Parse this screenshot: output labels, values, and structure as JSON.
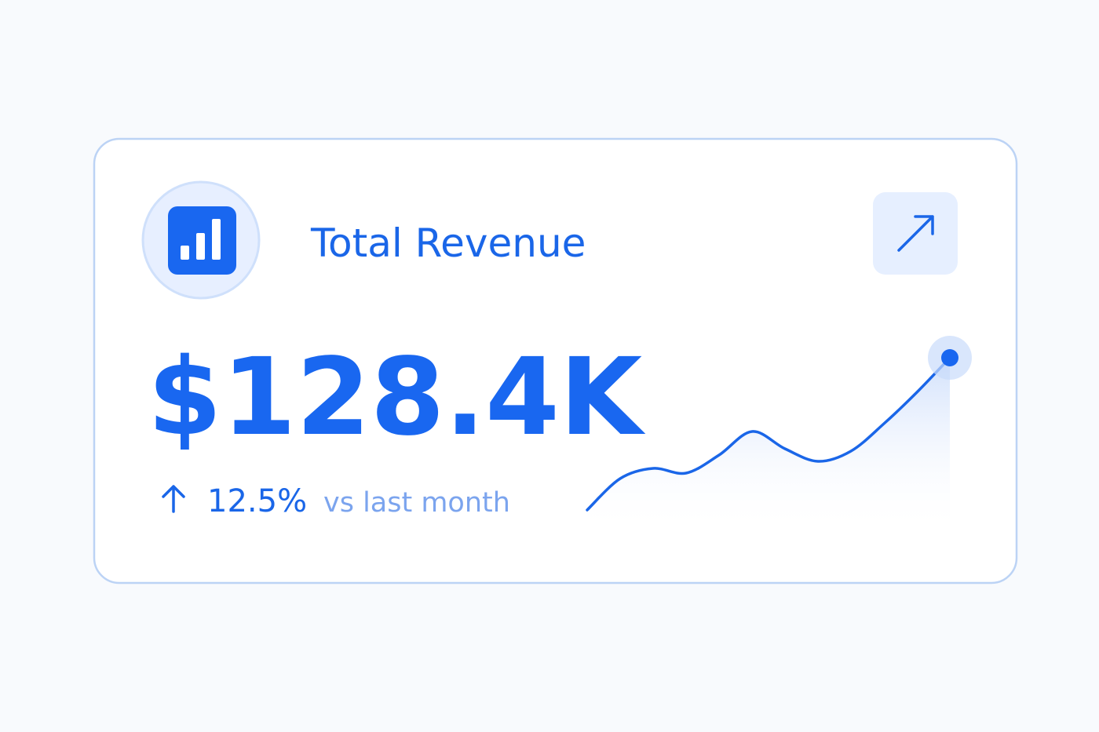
{
  "card": {
    "title": "Total Revenue",
    "value": "$128.4K",
    "change": "12.5%",
    "comparison": "vs last month",
    "sparkline": {
      "values": [
        30,
        70,
        83,
        77,
        100,
        130,
        108,
        92,
        105,
        140,
        180,
        224
      ]
    }
  }
}
